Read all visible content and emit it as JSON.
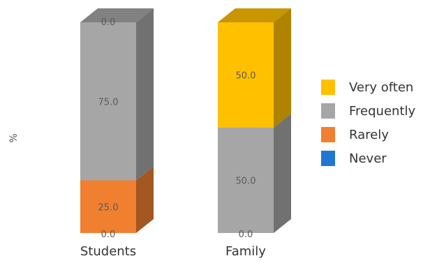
{
  "chart_data": {
    "type": "bar",
    "stacked": true,
    "ylabel": "%",
    "categories": [
      "Students",
      "Family"
    ],
    "series": [
      {
        "name": "Never",
        "values": [
          0.0,
          0.0
        ],
        "color": "#1f77d0"
      },
      {
        "name": "Rarely",
        "values": [
          25.0,
          0.0
        ],
        "color": "#f08030"
      },
      {
        "name": "Frequently",
        "values": [
          75.0,
          50.0
        ],
        "color": "#a6a6a6"
      },
      {
        "name": "Very often",
        "values": [
          0.0,
          50.0
        ],
        "color": "#ffc000"
      }
    ],
    "data_labels": [
      [
        "0.0",
        "25.0",
        "75.0",
        "0.0"
      ],
      [
        "0.0",
        "",
        "50.0",
        "50.0"
      ]
    ],
    "legend_order": [
      "Very often",
      "Frequently",
      "Rarely",
      "Never"
    ],
    "legend_position": "right",
    "ylim": [
      0,
      100
    ]
  }
}
